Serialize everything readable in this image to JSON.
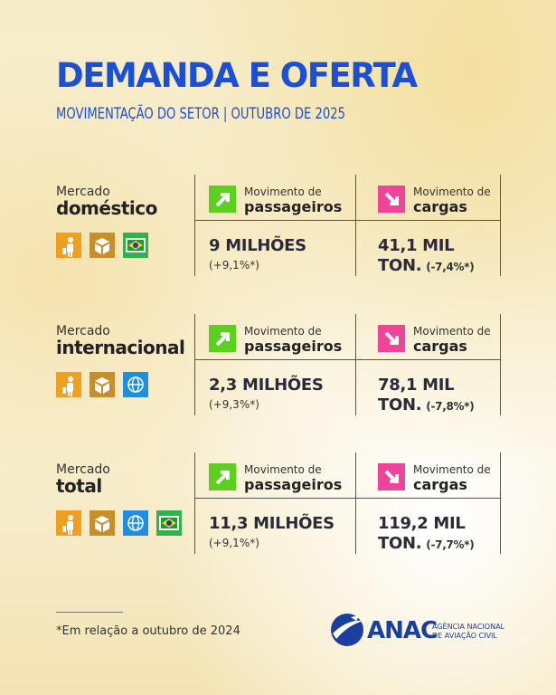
{
  "header": {
    "title": "DEMANDA E OFERTA",
    "subtitle": "MOVIMENTAÇÃO DO SETOR | OUTUBRO DE 2025"
  },
  "sections": [
    {
      "market": "Mercado",
      "name": "doméstico",
      "passengers": {
        "label": "Movimento de",
        "title": "passageiros",
        "value_lines": [
          "9 MILHÕES"
        ],
        "change": "(+9,1%*)"
      },
      "cargo": {
        "label": "Movimento de",
        "title": "cargas",
        "value_lines": [
          "41,1 MIL",
          "TON."
        ],
        "change": "(-7,4%*)"
      }
    },
    {
      "market": "Mercado",
      "name": "internacional",
      "passengers": {
        "label": "Movimento de",
        "title": "passageiros",
        "value_lines": [
          "2,3 MILHÕES"
        ],
        "change": "(+9,3%*)"
      },
      "cargo": {
        "label": "Movimento de",
        "title": "cargas",
        "value_lines": [
          "78,1 MIL",
          "TON."
        ],
        "change": "(-7,8%*)"
      }
    },
    {
      "market": "Mercado",
      "name": "total",
      "passengers": {
        "label": "Movimento de",
        "title": "passageiros",
        "value_lines": [
          "11,3 MILHÕES"
        ],
        "change": "(+9,1%*)"
      },
      "cargo": {
        "label": "Movimento de",
        "title": "cargas",
        "value_lines": [
          "119,2 MIL",
          "TON."
        ],
        "change": "(-7,7%*)"
      }
    }
  ],
  "footnote": "*Em relação a outubro de 2024",
  "logo": {
    "name": "ANAC",
    "line1": "AGÊNCIA NACIONAL",
    "line2": "DE AVIAÇÃO CIVIL"
  }
}
